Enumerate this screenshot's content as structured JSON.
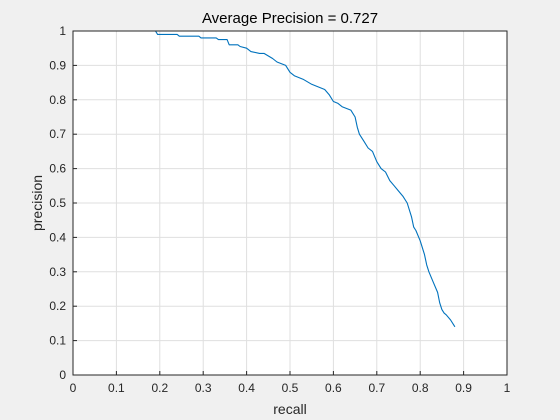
{
  "chart_data": {
    "type": "line",
    "title": "Average Precision = 0.727",
    "xlabel": "recall",
    "ylabel": "precision",
    "xlim": [
      0,
      1
    ],
    "ylim": [
      0,
      1
    ],
    "xticks": [
      "0",
      "0.1",
      "0.2",
      "0.3",
      "0.4",
      "0.5",
      "0.6",
      "0.7",
      "0.8",
      "0.9",
      "1"
    ],
    "yticks": [
      "0",
      "0.1",
      "0.2",
      "0.3",
      "0.4",
      "0.5",
      "0.6",
      "0.7",
      "0.8",
      "0.9",
      "1"
    ],
    "grid": true,
    "colors": {
      "line": "#0072bd",
      "axes_bg": "#ffffff",
      "figure_bg": "#f0f0f0",
      "grid": "#dfdfdf",
      "axis": "#262626"
    },
    "series": [
      {
        "x": [
          0.0,
          0.19,
          0.195,
          0.24,
          0.245,
          0.29,
          0.295,
          0.33,
          0.335,
          0.355,
          0.36,
          0.38,
          0.385,
          0.4,
          0.41,
          0.43,
          0.44,
          0.46,
          0.47,
          0.49,
          0.5,
          0.51,
          0.53,
          0.55,
          0.56,
          0.58,
          0.59,
          0.6,
          0.61,
          0.62,
          0.64,
          0.65,
          0.655,
          0.66,
          0.67,
          0.68,
          0.69,
          0.7,
          0.71,
          0.72,
          0.73,
          0.74,
          0.75,
          0.76,
          0.77,
          0.78,
          0.785,
          0.79,
          0.8,
          0.81,
          0.815,
          0.82,
          0.83,
          0.84,
          0.845,
          0.85,
          0.855,
          0.86,
          0.87,
          0.88
        ],
        "y": [
          1.0,
          1.0,
          0.99,
          0.99,
          0.985,
          0.985,
          0.98,
          0.98,
          0.975,
          0.975,
          0.96,
          0.96,
          0.955,
          0.95,
          0.94,
          0.935,
          0.935,
          0.92,
          0.91,
          0.9,
          0.88,
          0.87,
          0.86,
          0.845,
          0.84,
          0.83,
          0.815,
          0.795,
          0.79,
          0.78,
          0.77,
          0.75,
          0.72,
          0.7,
          0.68,
          0.66,
          0.65,
          0.62,
          0.6,
          0.59,
          0.565,
          0.55,
          0.535,
          0.52,
          0.5,
          0.46,
          0.43,
          0.42,
          0.39,
          0.35,
          0.32,
          0.3,
          0.27,
          0.24,
          0.21,
          0.19,
          0.18,
          0.175,
          0.16,
          0.14
        ]
      }
    ]
  }
}
